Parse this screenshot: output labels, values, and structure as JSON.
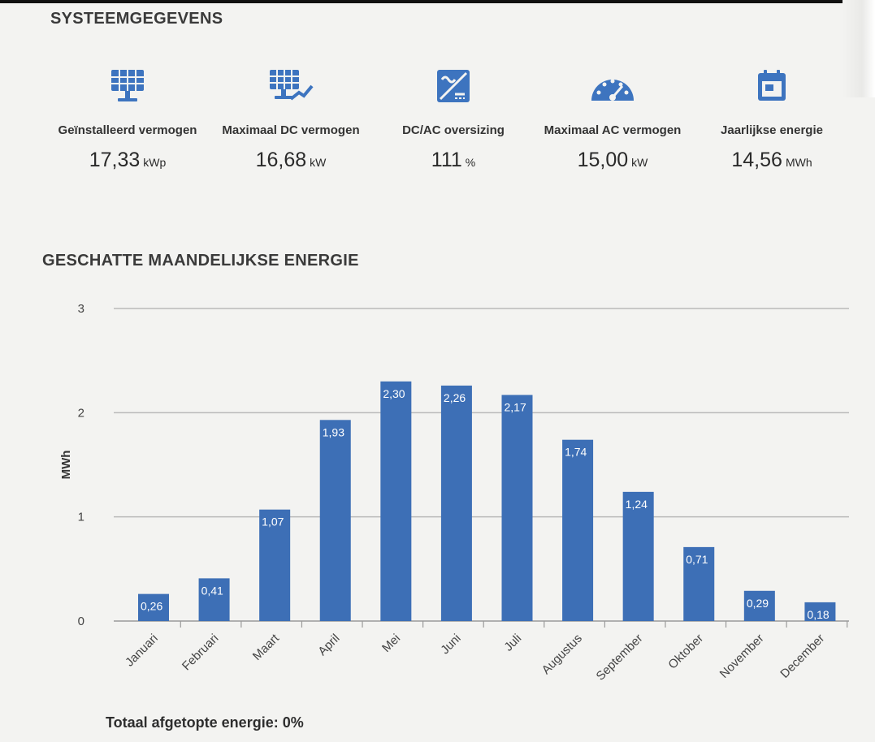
{
  "system": {
    "title": "SYSTEEMGEGEVENS",
    "stats": [
      {
        "icon": "solar-panel-icon",
        "label": "Geïnstalleerd vermogen",
        "value": "17,33",
        "unit": "kWp"
      },
      {
        "icon": "solar-panel-chart-icon",
        "label": "Maximaal DC vermogen",
        "value": "16,68",
        "unit": "kW"
      },
      {
        "icon": "dc-ac-icon",
        "label": "DC/AC oversizing",
        "value": "111",
        "unit": "%"
      },
      {
        "icon": "gauge-icon",
        "label": "Maximaal AC vermogen",
        "value": "15,00",
        "unit": "kW"
      },
      {
        "icon": "calendar-icon",
        "label": "Jaarlijkse energie",
        "value": "14,56",
        "unit": "MWh"
      }
    ],
    "accent": "#3d74bf"
  },
  "chart_data": {
    "type": "bar",
    "title": "GESCHATTE MAANDELIJKSE ENERGIE",
    "ylabel": "MWh",
    "ylim": [
      0,
      3
    ],
    "yticks": [
      "0",
      "1",
      "2",
      "3"
    ],
    "categories": [
      "Januari",
      "Februari",
      "Maart",
      "April",
      "Mei",
      "Juni",
      "Juli",
      "Augustus",
      "September",
      "Oktober",
      "November",
      "December"
    ],
    "values": [
      0.26,
      0.41,
      1.07,
      1.93,
      2.3,
      2.26,
      2.17,
      1.74,
      1.24,
      0.71,
      0.29,
      0.18
    ],
    "value_labels": [
      "0,26",
      "0,41",
      "1,07",
      "1,93",
      "2,30",
      "2,26",
      "2,17",
      "1,74",
      "1,24",
      "0,71",
      "0,29",
      "0,18"
    ],
    "grid": true,
    "bar_color": "#3d6fb6"
  },
  "footer": {
    "note": "Totaal afgetopte energie: 0%"
  }
}
